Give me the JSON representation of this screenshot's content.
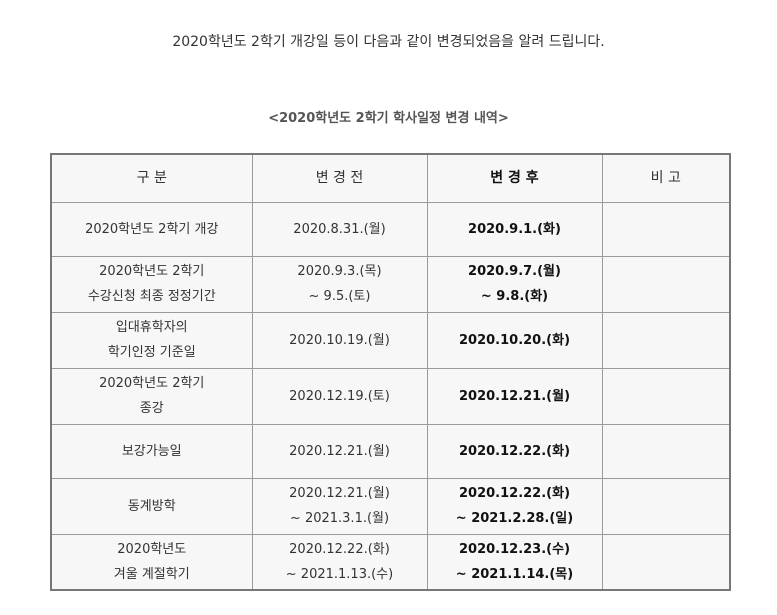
{
  "intro": "2020학년도 2학기 개강일 등이 다음과 같이 변경되었음을 알려 드립니다.",
  "subtitle": "<2020학년도 2학기 학사일정 변경 내역>",
  "table": {
    "headers": [
      "구 분",
      "변 경 전",
      "변 경 후",
      "비 고"
    ],
    "rows": [
      {
        "category": [
          "2020학년도 2학기 개강"
        ],
        "before": [
          "2020.8.31.(월)"
        ],
        "after": [
          "2020.9.1.(화)"
        ],
        "note": [
          ""
        ]
      },
      {
        "category": [
          "2020학년도 2학기",
          "수강신청 최종 정정기간"
        ],
        "before": [
          "2020.9.3.(목)",
          "~ 9.5.(토)"
        ],
        "after": [
          "2020.9.7.(월)",
          "~ 9.8.(화)"
        ],
        "note": [
          ""
        ]
      },
      {
        "category": [
          "입대휴학자의",
          "학기인정 기준일"
        ],
        "before": [
          "2020.10.19.(월)"
        ],
        "after": [
          "2020.10.20.(화)"
        ],
        "note": [
          ""
        ]
      },
      {
        "category": [
          "2020학년도 2학기",
          "종강"
        ],
        "before": [
          "2020.12.19.(토)"
        ],
        "after": [
          "2020.12.21.(월)"
        ],
        "note": [
          ""
        ]
      },
      {
        "category": [
          "보강가능일"
        ],
        "before": [
          "2020.12.21.(월)"
        ],
        "after": [
          "2020.12.22.(화)"
        ],
        "note": [
          ""
        ]
      },
      {
        "category": [
          "동계방학"
        ],
        "before": [
          "2020.12.21.(월)",
          "~ 2021.3.1.(월)"
        ],
        "after": [
          "2020.12.22.(화)",
          "~ 2021.2.28.(일)"
        ],
        "note": [
          ""
        ]
      },
      {
        "category": [
          "2020학년도",
          "겨울 계절학기"
        ],
        "before": [
          "2020.12.22.(화)",
          "~ 2021.1.13.(수)"
        ],
        "after": [
          "2020.12.23.(수)",
          "~ 2021.1.14.(목)"
        ],
        "note": [
          ""
        ]
      }
    ]
  }
}
